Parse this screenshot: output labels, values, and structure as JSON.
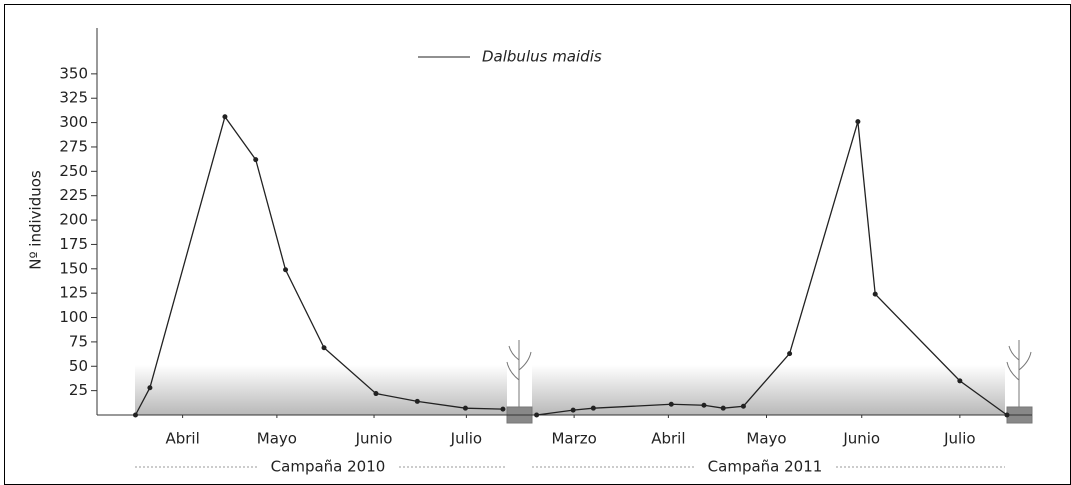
{
  "chart_data": {
    "type": "line",
    "y_label": "Nº individuos",
    "x": [
      0,
      0.15,
      0.93,
      1.25,
      1.56,
      1.96,
      2.5,
      2.93,
      3.43,
      3.82,
      null,
      4.17,
      4.55,
      4.76,
      5.57,
      5.91,
      6.11,
      6.32,
      6.8,
      7.51,
      7.69,
      8.57,
      9.06
    ],
    "series": [
      {
        "name": "Dalbulus maidis",
        "color": "#222222",
        "values": [
          0,
          28,
          306,
          262,
          149,
          69,
          22,
          14,
          7,
          6,
          null,
          0,
          5,
          7,
          11,
          10,
          7,
          9,
          63,
          301,
          124,
          35,
          0
        ]
      }
    ],
    "xlim": [
      -0.4,
      9.32
    ],
    "xticks": [
      {
        "value": 0.49,
        "label": "Abril"
      },
      {
        "value": 1.47,
        "label": "Mayo"
      },
      {
        "value": 2.48,
        "label": "Junio"
      },
      {
        "value": 3.44,
        "label": "Julio"
      },
      {
        "value": 4.56,
        "label": "Marzo"
      },
      {
        "value": 5.54,
        "label": "Abril"
      },
      {
        "value": 6.56,
        "label": "Mayo"
      },
      {
        "value": 7.55,
        "label": "Junio"
      },
      {
        "value": 8.57,
        "label": "Julio"
      }
    ],
    "x_groups": [
      "Campaña 2010",
      "Campaña 2011"
    ],
    "ylim": [
      0,
      395
    ],
    "yticks": [
      25,
      50,
      75,
      100,
      125,
      150,
      175,
      200,
      225,
      250,
      275,
      300,
      325,
      350
    ],
    "legend": "top"
  }
}
